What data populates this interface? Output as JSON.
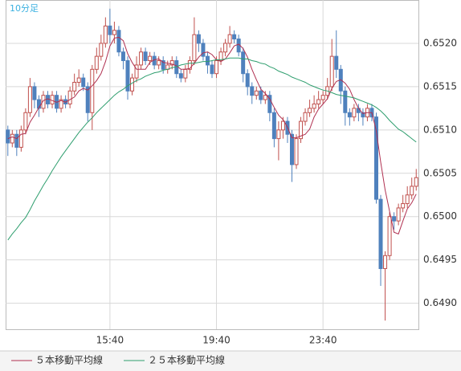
{
  "chart_data": {
    "type": "candlestick",
    "title": "10分足",
    "categories": [
      null,
      null,
      null,
      null,
      null,
      null,
      null,
      null,
      null,
      null,
      null,
      null,
      null,
      null,
      null,
      null,
      null,
      null,
      null,
      null,
      null,
      null,
      null,
      "15:40",
      null,
      null,
      null,
      null,
      null,
      null,
      null,
      null,
      null,
      null,
      null,
      null,
      null,
      null,
      null,
      null,
      null,
      null,
      null,
      null,
      null,
      null,
      null,
      "19:40",
      null,
      null,
      null,
      null,
      null,
      null,
      null,
      null,
      null,
      null,
      null,
      null,
      null,
      null,
      null,
      null,
      null,
      null,
      null,
      null,
      null,
      null,
      null,
      "23:40",
      null,
      null,
      null,
      null,
      null,
      null,
      null,
      null,
      null,
      null,
      null,
      null,
      null,
      null,
      null,
      null,
      null,
      null,
      null,
      null,
      null
    ],
    "open": [
      0.651,
      0.65085,
      0.65095,
      0.6508,
      0.651,
      0.6512,
      0.6515,
      0.65135,
      0.65125,
      0.6514,
      0.6513,
      0.6514,
      0.65125,
      0.65135,
      0.6513,
      0.65145,
      0.65155,
      0.6516,
      0.6515,
      0.6512,
      0.6517,
      0.65185,
      0.652,
      0.6522,
      0.6521,
      0.65215,
      0.6519,
      0.6518,
      0.65145,
      0.6516,
      0.65175,
      0.6519,
      0.6518,
      0.65185,
      0.65175,
      0.6518,
      0.6517,
      0.65175,
      0.6518,
      0.65165,
      0.6516,
      0.6517,
      0.6518,
      0.6521,
      0.652,
      0.65185,
      0.65175,
      0.65165,
      0.6518,
      0.6519,
      0.652,
      0.6521,
      0.65205,
      0.6519,
      0.65165,
      0.6515,
      0.6514,
      0.65145,
      0.65135,
      0.6514,
      0.6512,
      0.6509,
      0.651,
      0.6511,
      0.65095,
      0.6506,
      0.6509,
      0.6511,
      0.6512,
      0.65125,
      0.6513,
      0.65135,
      0.6514,
      0.6515,
      0.65185,
      0.6517,
      0.65145,
      0.6512,
      0.65115,
      0.65125,
      0.6512,
      0.65115,
      0.65125,
      0.65115,
      0.6502,
      0.6494,
      0.64955,
      0.65,
      0.64995,
      0.6501,
      0.65015,
      0.65025,
      0.65035
    ],
    "high": [
      0.65105,
      0.651,
      0.651,
      0.65105,
      0.65125,
      0.6516,
      0.65155,
      0.6514,
      0.65145,
      0.65145,
      0.65145,
      0.65145,
      0.6514,
      0.6514,
      0.6515,
      0.65165,
      0.6517,
      0.65165,
      0.65155,
      0.65175,
      0.65195,
      0.6521,
      0.6523,
      0.6524,
      0.65225,
      0.6522,
      0.65195,
      0.65185,
      0.65165,
      0.65185,
      0.65195,
      0.65195,
      0.6519,
      0.6519,
      0.65185,
      0.65185,
      0.6518,
      0.65185,
      0.65185,
      0.6517,
      0.65175,
      0.65185,
      0.6523,
      0.65215,
      0.65205,
      0.6519,
      0.6518,
      0.65185,
      0.65195,
      0.65205,
      0.6522,
      0.65215,
      0.6521,
      0.65195,
      0.6517,
      0.65155,
      0.6515,
      0.6515,
      0.65145,
      0.65145,
      0.65125,
      0.6511,
      0.65115,
      0.65115,
      0.651,
      0.65095,
      0.65115,
      0.65125,
      0.65135,
      0.6514,
      0.65145,
      0.65145,
      0.6516,
      0.65205,
      0.65215,
      0.65175,
      0.6515,
      0.65125,
      0.6513,
      0.6513,
      0.65125,
      0.6513,
      0.6513,
      0.6512,
      0.65025,
      0.6496,
      0.65005,
      0.65005,
      0.65015,
      0.65025,
      0.65035,
      0.65045,
      0.65055
    ],
    "low": [
      0.6507,
      0.6508,
      0.6507,
      0.65075,
      0.65095,
      0.65115,
      0.65125,
      0.65115,
      0.6512,
      0.65125,
      0.65125,
      0.6512,
      0.6512,
      0.65125,
      0.65125,
      0.6514,
      0.6515,
      0.65145,
      0.6511,
      0.651,
      0.65165,
      0.6518,
      0.65195,
      0.652,
      0.652,
      0.65185,
      0.6517,
      0.65135,
      0.6514,
      0.65155,
      0.6517,
      0.65175,
      0.65175,
      0.6517,
      0.6517,
      0.65165,
      0.65165,
      0.6517,
      0.6516,
      0.65155,
      0.65155,
      0.65165,
      0.65175,
      0.6519,
      0.6518,
      0.65165,
      0.6516,
      0.6516,
      0.65175,
      0.65185,
      0.65195,
      0.652,
      0.65185,
      0.65155,
      0.6514,
      0.6513,
      0.65135,
      0.6513,
      0.6513,
      0.6511,
      0.6508,
      0.65065,
      0.6509,
      0.65085,
      0.6504,
      0.65055,
      0.65085,
      0.65105,
      0.65115,
      0.6512,
      0.65125,
      0.6513,
      0.65135,
      0.65145,
      0.6516,
      0.6513,
      0.65105,
      0.65105,
      0.6511,
      0.6511,
      0.65105,
      0.6511,
      0.6511,
      0.65015,
      0.6492,
      0.6488,
      0.6495,
      0.64985,
      0.6499,
      0.65005,
      0.6501,
      0.6502,
      0.6503
    ],
    "close": [
      0.65085,
      0.65095,
      0.6508,
      0.651,
      0.6512,
      0.6515,
      0.65135,
      0.65125,
      0.6514,
      0.6513,
      0.6514,
      0.65125,
      0.65135,
      0.6513,
      0.65145,
      0.65155,
      0.6516,
      0.6515,
      0.6512,
      0.6517,
      0.65185,
      0.652,
      0.6522,
      0.6521,
      0.65215,
      0.6519,
      0.6518,
      0.65145,
      0.6516,
      0.65175,
      0.6519,
      0.6518,
      0.65185,
      0.65175,
      0.6518,
      0.6517,
      0.65175,
      0.6518,
      0.65165,
      0.6516,
      0.6517,
      0.6518,
      0.6521,
      0.652,
      0.65185,
      0.65175,
      0.65165,
      0.6518,
      0.6519,
      0.652,
      0.6521,
      0.65205,
      0.6519,
      0.65165,
      0.6515,
      0.6514,
      0.65145,
      0.65135,
      0.6514,
      0.6512,
      0.6509,
      0.651,
      0.6511,
      0.65095,
      0.6506,
      0.6509,
      0.6511,
      0.6512,
      0.65125,
      0.6513,
      0.65135,
      0.6514,
      0.6515,
      0.65185,
      0.6517,
      0.65145,
      0.6512,
      0.65115,
      0.65125,
      0.6512,
      0.65115,
      0.65125,
      0.65115,
      0.6502,
      0.6494,
      0.64955,
      0.65,
      0.64995,
      0.6501,
      0.65015,
      0.65025,
      0.65035,
      0.65045
    ],
    "up_color": "#c0504d",
    "down_color": "#4f81bd",
    "series": [
      {
        "name": "５本移動平均線",
        "color": "#b03050",
        "values": [
          0.6509,
          0.65092,
          0.6509,
          0.65095,
          0.65096,
          0.65109,
          0.65117,
          0.65126,
          0.65134,
          0.65136,
          0.65134,
          0.65132,
          0.65134,
          0.65132,
          0.65135,
          0.65138,
          0.65145,
          0.65148,
          0.65146,
          0.65151,
          0.65157,
          0.65165,
          0.65179,
          0.65197,
          0.65206,
          0.65207,
          0.65203,
          0.65188,
          0.65178,
          0.6517,
          0.6517,
          0.6517,
          0.65178,
          0.65181,
          0.65182,
          0.65178,
          0.65177,
          0.65176,
          0.65174,
          0.6517,
          0.6517,
          0.65171,
          0.65177,
          0.65184,
          0.65189,
          0.6519,
          0.65187,
          0.65181,
          0.65179,
          0.65182,
          0.65189,
          0.65197,
          0.65199,
          0.65194,
          0.65184,
          0.6517,
          0.65158,
          0.65147,
          0.65142,
          0.65136,
          0.65126,
          0.65117,
          0.65112,
          0.65103,
          0.65091,
          0.65091,
          0.65093,
          0.65095,
          0.65101,
          0.65115,
          0.65124,
          0.6513,
          0.65136,
          0.65148,
          0.65156,
          0.65158,
          0.65154,
          0.65147,
          0.65135,
          0.65125,
          0.65119,
          0.6512,
          0.6512,
          0.65099,
          0.65063,
          0.65031,
          0.65006,
          0.64982,
          0.6498,
          0.64995,
          0.65009,
          0.65016,
          0.65026
        ]
      },
      {
        "name": "２５本移動平均線",
        "color": "#2e9e6e",
        "values": [
          0.64973,
          0.6498,
          0.64986,
          0.64993,
          0.64999,
          0.65008,
          0.65018,
          0.65027,
          0.65036,
          0.65044,
          0.65053,
          0.65061,
          0.65069,
          0.65076,
          0.65083,
          0.6509,
          0.65097,
          0.65103,
          0.65109,
          0.65114,
          0.6512,
          0.65125,
          0.6513,
          0.65135,
          0.6514,
          0.65144,
          0.65147,
          0.65151,
          0.65154,
          0.65157,
          0.65159,
          0.65162,
          0.65164,
          0.65166,
          0.65167,
          0.65169,
          0.6517,
          0.65172,
          0.65173,
          0.65175,
          0.65176,
          0.65177,
          0.65177,
          0.65178,
          0.65179,
          0.65179,
          0.6518,
          0.65181,
          0.65181,
          0.65182,
          0.65183,
          0.65183,
          0.65183,
          0.65182,
          0.65182,
          0.6518,
          0.65179,
          0.65177,
          0.65176,
          0.65173,
          0.65171,
          0.65168,
          0.65166,
          0.65164,
          0.65161,
          0.65159,
          0.65157,
          0.65155,
          0.65152,
          0.6515,
          0.65148,
          0.65146,
          0.65145,
          0.65143,
          0.65141,
          0.6514,
          0.65139,
          0.65138,
          0.65137,
          0.65135,
          0.65133,
          0.65131,
          0.65129,
          0.65126,
          0.65122,
          0.65117,
          0.65111,
          0.65106,
          0.65101,
          0.65098,
          0.65094,
          0.6509,
          0.65086
        ]
      }
    ],
    "ylim": [
      0.6487,
      0.6525
    ],
    "yticks": [
      {
        "value": 0.649,
        "label": "0.6490"
      },
      0.6495,
      {
        "value": 0.65,
        "label": "0.6500"
      },
      0.6505,
      {
        "value": 0.651,
        "label": "0.6510"
      },
      0.6515,
      {
        "value": 0.652,
        "label": "0.6520"
      }
    ],
    "grid": true
  }
}
